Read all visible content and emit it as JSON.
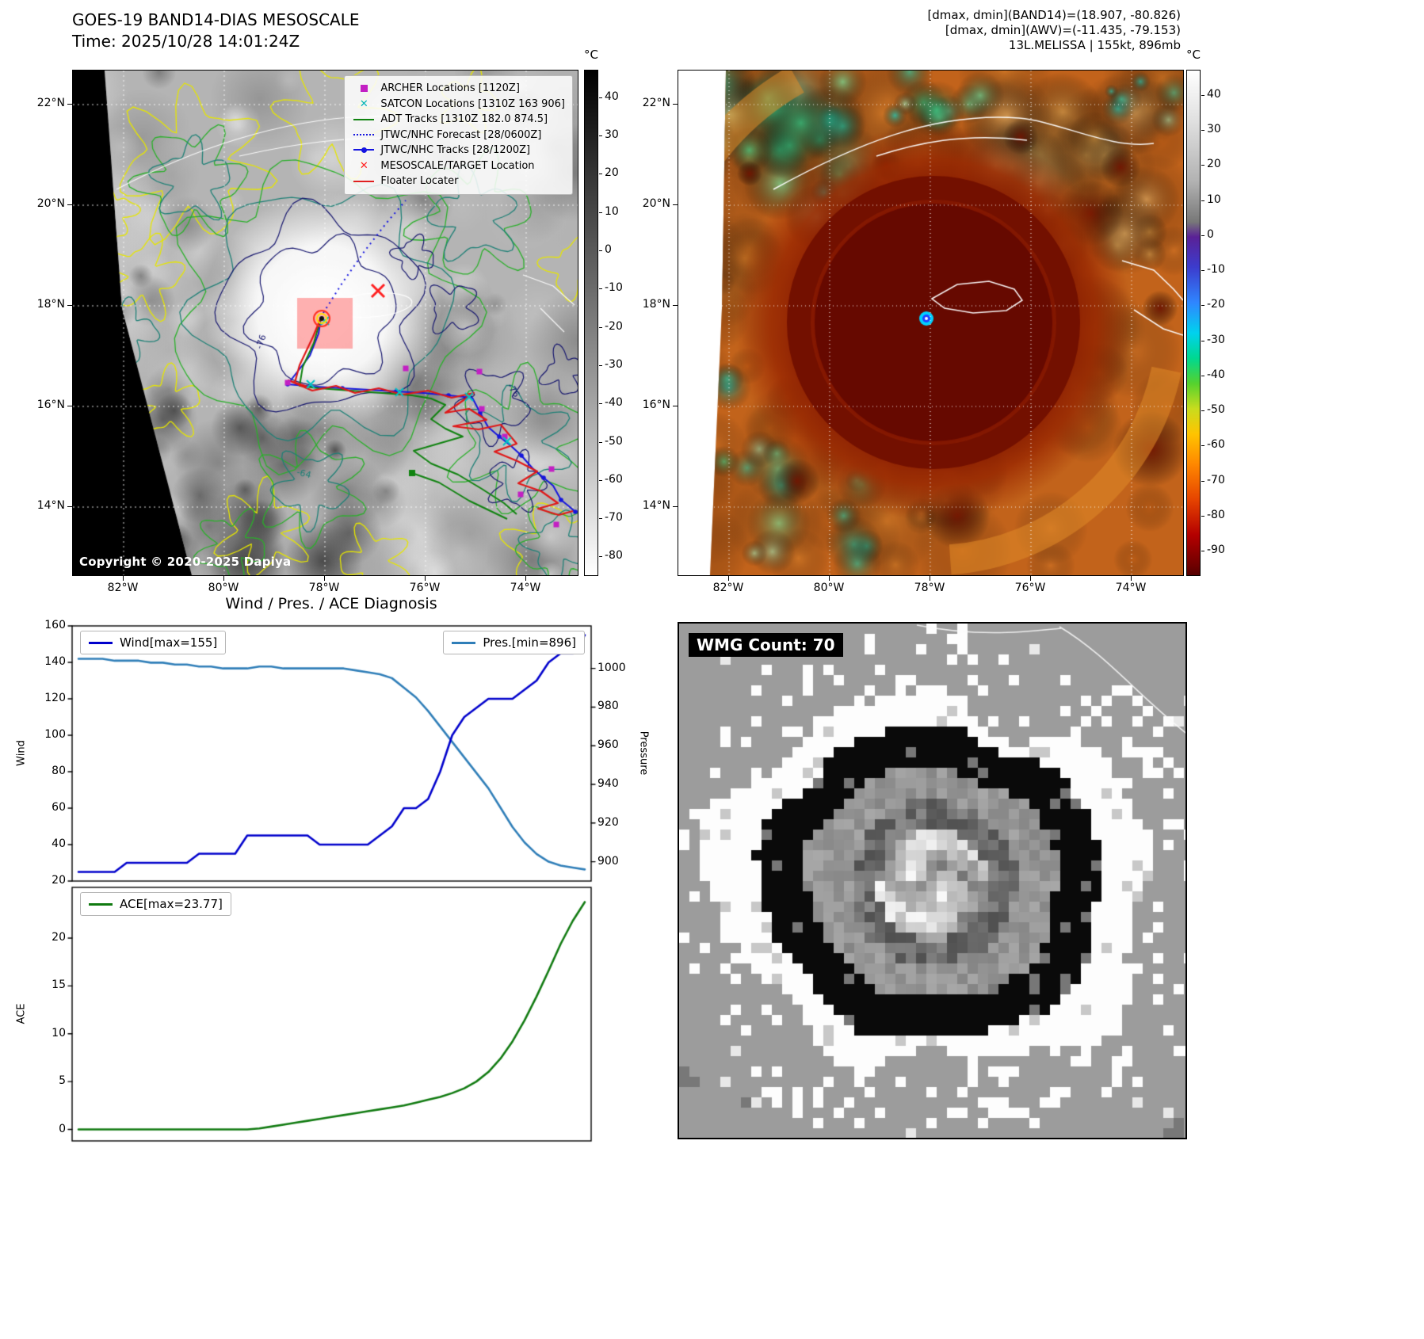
{
  "band14_panel": {
    "title": "GOES-19 BAND14-DIAS MESOSCALE",
    "time_line": "Time: 2025/10/28 14:01:24Z",
    "copyright": "Copyright © 2020-2025 Dapiya",
    "colorbar_unit": "°C",
    "colorbar_ticks": [
      40,
      30,
      20,
      10,
      0,
      -10,
      -20,
      -30,
      -40,
      -50,
      -60,
      -70,
      -80
    ],
    "lat_ticks": [
      "22°N",
      "20°N",
      "18°N",
      "16°N",
      "14°N"
    ],
    "lon_ticks": [
      "82°W",
      "80°W",
      "78°W",
      "76°W",
      "74°W"
    ],
    "contour_labels": [
      "-76",
      "-64"
    ],
    "legend_items": [
      {
        "label": "ARCHER Locations [1120Z]",
        "marker": "square",
        "color": "#c320c3"
      },
      {
        "label": "SATCON Locations [1310Z 163 906]",
        "marker": "x",
        "color": "#00b5b5"
      },
      {
        "label": "ADT Tracks [1310Z 182.0 874.5]",
        "marker": "line",
        "color": "#108310"
      },
      {
        "label": "JTWC/NHC Forecast [28/0600Z]",
        "marker": "dotted-line",
        "color": "#1515e0"
      },
      {
        "label": "JTWC/NHC Tracks [28/1200Z]",
        "marker": "line-dot",
        "color": "#1515e0"
      },
      {
        "label": "MESOSCALE/TARGET Location",
        "marker": "x",
        "color": "#ff2020"
      },
      {
        "label": "Floater Locater",
        "marker": "line",
        "color": "#e02020"
      }
    ]
  },
  "awv_panel": {
    "title_lines": [
      "[dmax, dmin](BAND14)=(18.907, -80.826)",
      "[dmax, dmin](AWV)=(-11.435, -79.153)",
      "13L.MELISSA | 155kt, 896mb"
    ],
    "colorbar_unit": "°C",
    "colorbar_ticks": [
      40,
      30,
      20,
      10,
      0,
      -10,
      -20,
      -30,
      -40,
      -50,
      -60,
      -70,
      -80,
      -90
    ],
    "lat_ticks": [
      "22°N",
      "20°N",
      "18°N",
      "16°N",
      "14°N"
    ],
    "lon_ticks": [
      "82°W",
      "80°W",
      "78°W",
      "76°W",
      "74°W"
    ]
  },
  "diagnosis_panel": {
    "title": "Wind / Pres. / ACE Diagnosis"
  },
  "wmg_panel": {
    "label": "WMG Count: 70"
  },
  "chart_data": [
    {
      "type": "line",
      "title": "Wind / Pres. / ACE Diagnosis",
      "xlabel": "",
      "ylabel": "Wind",
      "y2label": "Pressure",
      "ylim": [
        20,
        160
      ],
      "y2lim": [
        890,
        1022
      ],
      "yticks": [
        20,
        40,
        60,
        80,
        100,
        120,
        140,
        160
      ],
      "y2ticks": [
        900,
        920,
        940,
        960,
        980,
        1000
      ],
      "legend_position": "upper-left / upper-right",
      "grid": false,
      "series": [
        {
          "name": "Wind[max=155]",
          "axis": "left",
          "color": "#0000cc",
          "values": [
            25,
            25,
            25,
            25,
            30,
            30,
            30,
            30,
            30,
            30,
            35,
            35,
            35,
            35,
            45,
            45,
            45,
            45,
            45,
            45,
            40,
            40,
            40,
            40,
            40,
            45,
            50,
            60,
            60,
            65,
            80,
            100,
            110,
            115,
            120,
            120,
            120,
            125,
            130,
            140,
            145,
            145,
            155
          ]
        },
        {
          "name": "Pres.[min=896]",
          "axis": "right",
          "color": "#2f7eb8",
          "values": [
            1005,
            1005,
            1005,
            1004,
            1004,
            1004,
            1003,
            1003,
            1002,
            1002,
            1001,
            1001,
            1000,
            1000,
            1000,
            1001,
            1001,
            1000,
            1000,
            1000,
            1000,
            1000,
            1000,
            999,
            998,
            997,
            995,
            990,
            985,
            978,
            970,
            962,
            954,
            946,
            938,
            928,
            918,
            910,
            904,
            900,
            898,
            897,
            896
          ]
        }
      ]
    },
    {
      "type": "line",
      "title": "",
      "xlabel": "",
      "ylabel": "ACE",
      "ylim": [
        -1.2,
        25.3
      ],
      "yticks": [
        0,
        5,
        10,
        15,
        20
      ],
      "legend_position": "upper-left",
      "grid": false,
      "series": [
        {
          "name": "ACE[max=23.77]",
          "axis": "left",
          "color": "#107a10",
          "values": [
            0,
            0,
            0,
            0,
            0,
            0,
            0,
            0,
            0,
            0,
            0,
            0,
            0,
            0,
            0,
            0.1,
            0.3,
            0.5,
            0.7,
            0.9,
            1.1,
            1.3,
            1.5,
            1.7,
            1.9,
            2.1,
            2.3,
            2.5,
            2.8,
            3.1,
            3.4,
            3.8,
            4.3,
            5.0,
            6.0,
            7.4,
            9.2,
            11.4,
            13.9,
            16.6,
            19.4,
            21.8,
            23.77
          ]
        }
      ]
    }
  ]
}
